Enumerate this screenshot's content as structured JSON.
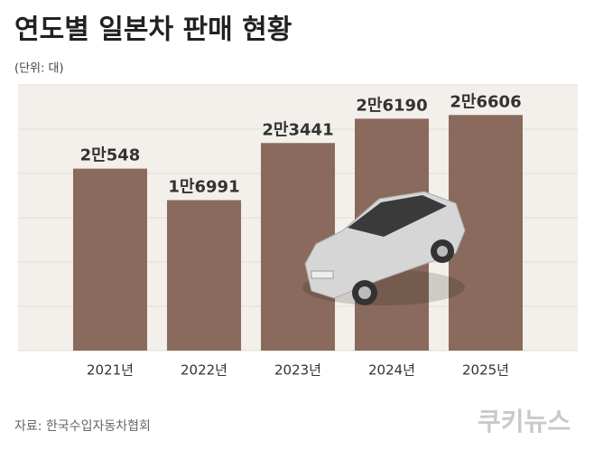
{
  "title": "연도별 일본차 판매 현황",
  "unit_note": "(단위: 대)",
  "source": "자료: 한국수입자동차협회",
  "logo": "쿠키뉴스",
  "chart_data": {
    "type": "bar",
    "categories": [
      "2021년",
      "2022년",
      "2023년",
      "2024년",
      "2025년"
    ],
    "values": [
      20548,
      16991,
      23441,
      26190,
      26606
    ],
    "value_labels": [
      "2만548",
      "1만6991",
      "2만3441",
      "2만6190",
      "2만6606"
    ],
    "color": "#8a6a5c",
    "ylim": [
      0,
      30000
    ],
    "yticks": [
      0,
      5000,
      10000,
      15000,
      20000,
      25000,
      30000
    ],
    "grid": true
  }
}
